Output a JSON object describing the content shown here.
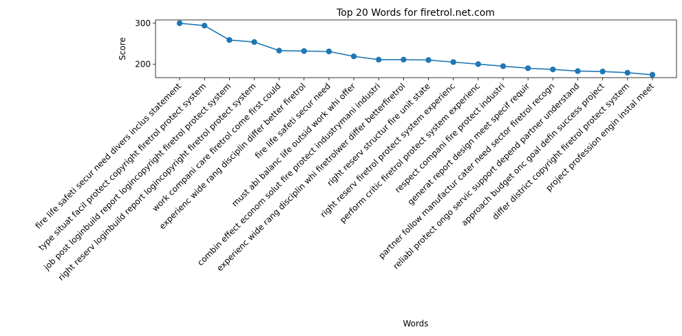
{
  "chart_data": {
    "type": "line",
    "title": "Top 20 Words for firetrol.net.com",
    "xlabel": "Words",
    "ylabel": "Score",
    "ylim": [
      167,
      308
    ],
    "yticks": [
      200,
      300
    ],
    "grid": false,
    "legend": "none",
    "line_color": "#1f77b4",
    "categories": [
      "fire life safeti secur need divers inclus statement",
      "type situat facil protect copyright firetrol protect system",
      "job post loginbuild report logincopyright firetrol protect system",
      "right reserv loginbuild report logincopyright firetrol protect system",
      "work compani care firetrol come first could",
      "experienc wide rang disciplin differ better firetrol",
      "fire life safeti secur need",
      "must abl balanc life outsid work whi offer",
      "combin effect econom solut fire protect industrymani industri",
      "experienc wide rang disciplin whi firetrolwer differ betterfiretrol",
      "right reserv structur fire unit state",
      "right reserv firetrol protect system experienc",
      "perform critic firetrol protect system experienc",
      "respect compani fire protect industri",
      "generat report design meet specif requir",
      "partner follow manufactur cater need sector firetrol recogn",
      "reliabl protect ongo servic support depend partner understand",
      "approach budget onc goal defin success project",
      "differ district copyright firetrol protect system",
      "project profession engin instal meet"
    ],
    "values": [
      300,
      294,
      259,
      254,
      233,
      232,
      231,
      219,
      211,
      211,
      210,
      205,
      200,
      195,
      190,
      187,
      183,
      182,
      179,
      174
    ]
  }
}
